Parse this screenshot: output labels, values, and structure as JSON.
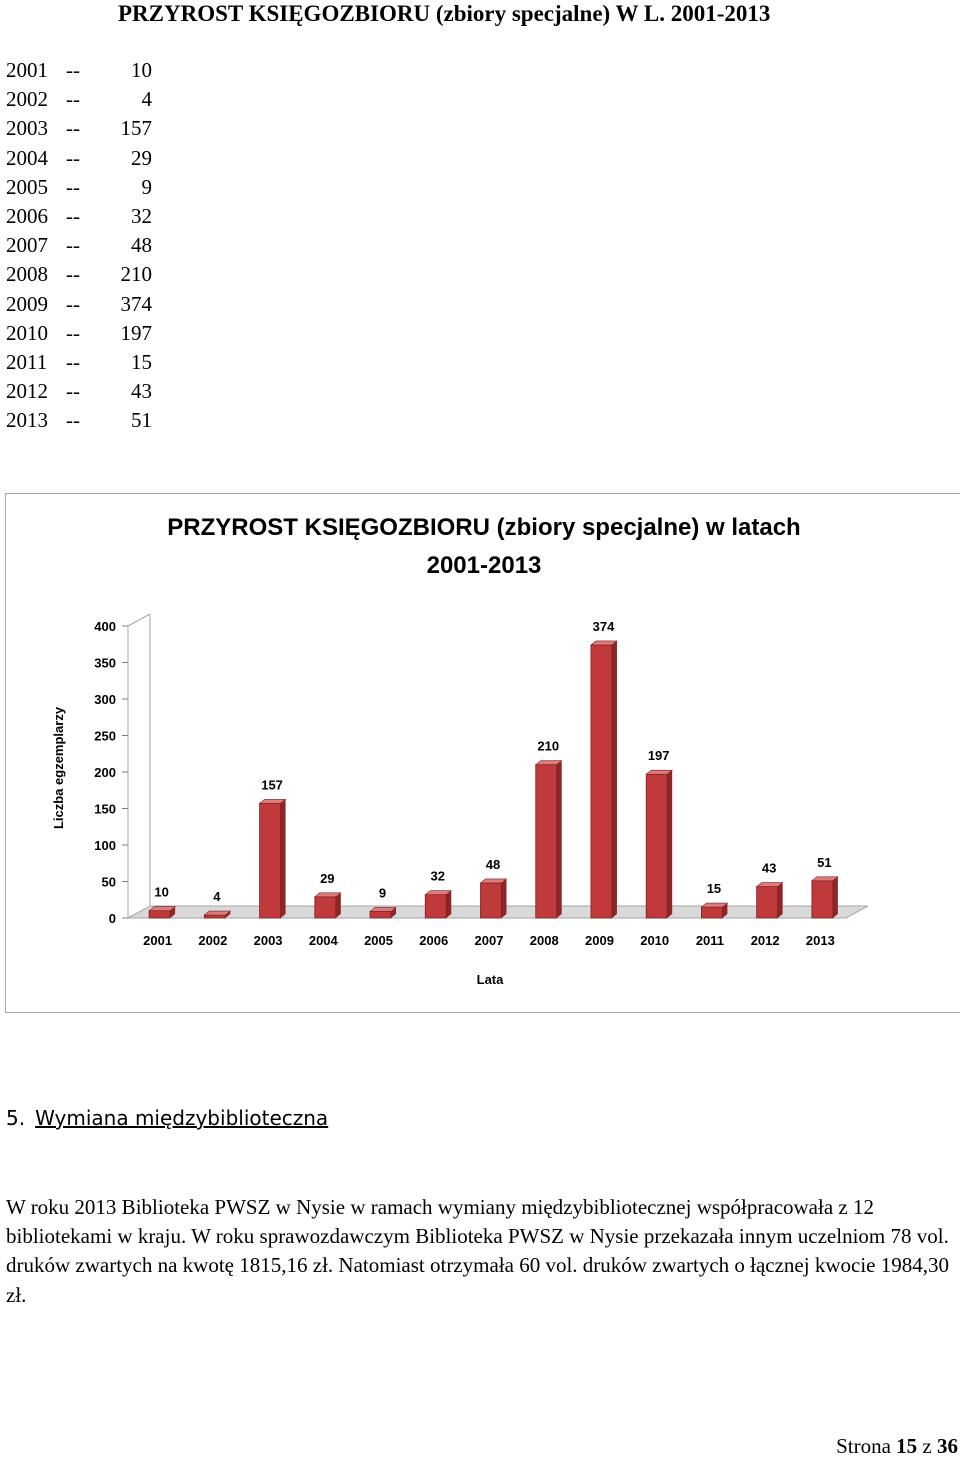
{
  "page_title": "PRZYROST  KSIĘGOZBIORU (zbiory specjalne) W L. 2001-2013",
  "data_list": [
    {
      "year": "2001",
      "sep": "--",
      "value": "10"
    },
    {
      "year": "2002",
      "sep": "--",
      "value": "4"
    },
    {
      "year": "2003",
      "sep": "--",
      "value": "157"
    },
    {
      "year": "2004",
      "sep": "--",
      "value": "29"
    },
    {
      "year": "2005",
      "sep": "--",
      "value": "9"
    },
    {
      "year": "2006",
      "sep": "--",
      "value": "32"
    },
    {
      "year": "2007",
      "sep": "--",
      "value": "48"
    },
    {
      "year": "2008",
      "sep": "--",
      "value": "210"
    },
    {
      "year": "2009",
      "sep": "--",
      "value": "374"
    },
    {
      "year": "2010",
      "sep": "--",
      "value": "197"
    },
    {
      "year": "2011",
      "sep": "--",
      "value": "15"
    },
    {
      "year": "2012",
      "sep": "--",
      "value": "43"
    },
    {
      "year": "2013",
      "sep": "--",
      "value": "51"
    }
  ],
  "chart_data": {
    "type": "bar",
    "title_line1": "PRZYROST  KSIĘGOZBIORU (zbiory specjalne) w latach",
    "title_line2": "2001-2013",
    "xlabel": "Lata",
    "ylabel": "Liczba egzemplarzy",
    "categories": [
      "2001",
      "2002",
      "2003",
      "2004",
      "2005",
      "2006",
      "2007",
      "2008",
      "2009",
      "2010",
      "2011",
      "2012",
      "2013"
    ],
    "values": [
      10,
      4,
      157,
      29,
      9,
      32,
      48,
      210,
      374,
      197,
      15,
      43,
      51
    ],
    "ylim": [
      0,
      400
    ],
    "yticks": [
      0,
      50,
      100,
      150,
      200,
      250,
      300,
      350,
      400
    ],
    "bar_color": "#c0393b",
    "legend": "none",
    "grid": false,
    "style": "3d"
  },
  "section": {
    "number": "5.",
    "title": "Wymiana międzybiblioteczna"
  },
  "body_text": "W roku 2013 Biblioteka PWSZ w Nysie w ramach wymiany międzybibliotecznej współpracowała z 12 bibliotekami w kraju. W roku sprawozdawczym Biblioteka PWSZ w Nysie przekazała innym uczelniom 78 vol. druków zwartych na kwotę 1815,16 zł. Natomiast otrzymała 60 vol. druków zwartych o łącznej kwocie 1984,30 zł.",
  "footer": {
    "prefix": "Strona",
    "page": "15",
    "mid": "z",
    "total": "36"
  }
}
